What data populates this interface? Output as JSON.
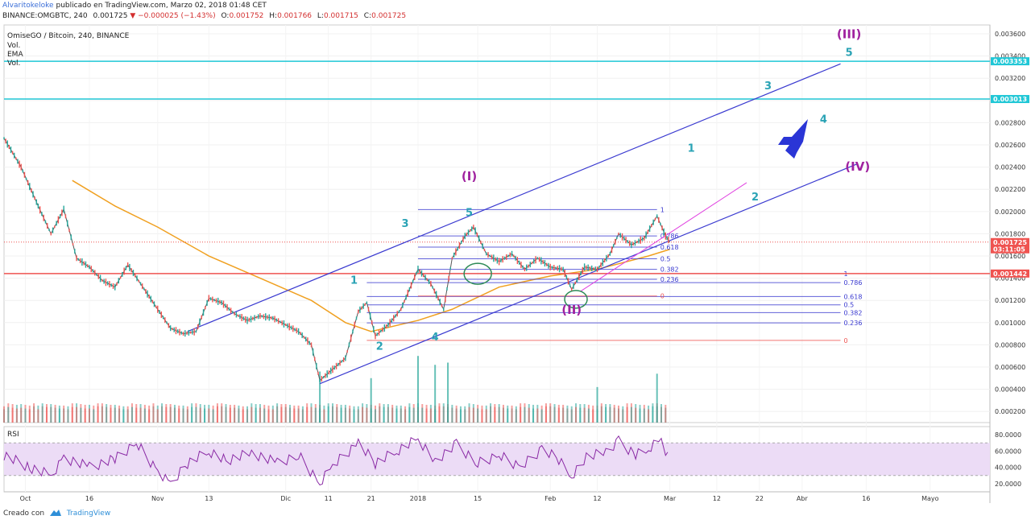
{
  "header": {
    "author": "Alvaritokeloke",
    "published": "publicado en TradingView.com, Marzo 02, 2018 01:48 CET",
    "symbol": "BINANCE:OMGBTC, 240",
    "last": "0.001725",
    "change": "−0.000025 (−1.43%)",
    "o_label": "O:",
    "o_value": "0.001752",
    "h_label": "H:",
    "h_value": "0.001766",
    "l_label": "L:",
    "l_value": "0.001715",
    "c_label": "C:",
    "c_value": "0.001725"
  },
  "legend": {
    "title": "OmiseGO / Bitcoin, 240, BINANCE",
    "vol": "Vol.",
    "ema": "EMA",
    "vol2": "Vol.",
    "rsi": "RSI"
  },
  "footer": {
    "created_with": "Creado con",
    "brand": "TradingView"
  },
  "colors": {
    "up": "#26a69a",
    "down": "#ef5350",
    "ema": "#f0a020",
    "channel": "#3a3ad0",
    "wave_teal": "#2aa3b5",
    "wave_purple": "#a0229f",
    "rsi_line": "#8a2aa5",
    "rsi_band": "#ecdcf6",
    "cyan_line": "#20c7d6"
  },
  "chart_data": {
    "type": "line",
    "series": [
      {
        "values": [
          {
            "x": "2017-09-26",
            "y": 0.00266
          },
          {
            "x": "2017-09-30",
            "y": 0.0024
          },
          {
            "x": "2017-10-04",
            "y": 0.00205
          },
          {
            "x": "2017-10-07",
            "y": 0.0018
          },
          {
            "x": "2017-10-10",
            "y": 0.00202
          },
          {
            "x": "2017-10-13",
            "y": 0.00158
          },
          {
            "x": "2017-10-16",
            "y": 0.0015
          },
          {
            "x": "2017-10-19",
            "y": 0.00138
          },
          {
            "x": "2017-10-22",
            "y": 0.00132
          },
          {
            "x": "2017-10-25",
            "y": 0.00152
          },
          {
            "x": "2017-10-28",
            "y": 0.00135
          },
          {
            "x": "2017-11-01",
            "y": 0.00112
          },
          {
            "x": "2017-11-04",
            "y": 0.00095
          },
          {
            "x": "2017-11-07",
            "y": 0.0009
          },
          {
            "x": "2017-11-10",
            "y": 0.00092
          },
          {
            "x": "2017-11-13",
            "y": 0.00122
          },
          {
            "x": "2017-11-16",
            "y": 0.00118
          },
          {
            "x": "2017-11-19",
            "y": 0.00108
          },
          {
            "x": "2017-11-22",
            "y": 0.00102
          },
          {
            "x": "2017-11-25",
            "y": 0.00106
          },
          {
            "x": "2017-11-28",
            "y": 0.00104
          },
          {
            "x": "2017-12-01",
            "y": 0.00098
          },
          {
            "x": "2017-12-04",
            "y": 0.00092
          },
          {
            "x": "2017-12-07",
            "y": 0.0008
          },
          {
            "x": "2017-12-09",
            "y": 0.00048
          },
          {
            "x": "2017-12-12",
            "y": 0.00058
          },
          {
            "x": "2017-12-15",
            "y": 0.00068
          },
          {
            "x": "2017-12-18",
            "y": 0.0011
          },
          {
            "x": "2017-12-20",
            "y": 0.00118
          },
          {
            "x": "2017-12-22",
            "y": 0.00088
          },
          {
            "x": "2017-12-25",
            "y": 0.00098
          },
          {
            "x": "2017-12-28",
            "y": 0.00112
          },
          {
            "x": "2018-01-01",
            "y": 0.00148
          },
          {
            "x": "2018-01-04",
            "y": 0.00135
          },
          {
            "x": "2018-01-07",
            "y": 0.00112
          },
          {
            "x": "2018-01-09",
            "y": 0.00158
          },
          {
            "x": "2018-01-12",
            "y": 0.00178
          },
          {
            "x": "2018-01-14",
            "y": 0.00186
          },
          {
            "x": "2018-01-17",
            "y": 0.00162
          },
          {
            "x": "2018-01-20",
            "y": 0.00155
          },
          {
            "x": "2018-01-23",
            "y": 0.00162
          },
          {
            "x": "2018-01-26",
            "y": 0.00148
          },
          {
            "x": "2018-01-29",
            "y": 0.00158
          },
          {
            "x": "2018-02-01",
            "y": 0.0015
          },
          {
            "x": "2018-02-04",
            "y": 0.00148
          },
          {
            "x": "2018-02-06",
            "y": 0.0013
          },
          {
            "x": "2018-02-09",
            "y": 0.0015
          },
          {
            "x": "2018-02-12",
            "y": 0.00148
          },
          {
            "x": "2018-02-15",
            "y": 0.00162
          },
          {
            "x": "2018-02-17",
            "y": 0.0018
          },
          {
            "x": "2018-02-20",
            "y": 0.0017
          },
          {
            "x": "2018-02-23",
            "y": 0.00176
          },
          {
            "x": "2018-02-26",
            "y": 0.00196
          },
          {
            "x": "2018-02-28",
            "y": 0.00178
          },
          {
            "x": "2018-03-01",
            "y": 0.001725
          }
        ]
      }
    ],
    "ema": [
      {
        "x": "2017-10-12",
        "y": 0.00228
      },
      {
        "x": "2017-10-22",
        "y": 0.00205
      },
      {
        "x": "2017-11-01",
        "y": 0.00186
      },
      {
        "x": "2017-11-13",
        "y": 0.0016
      },
      {
        "x": "2017-11-25",
        "y": 0.0014
      },
      {
        "x": "2017-12-07",
        "y": 0.0012
      },
      {
        "x": "2017-12-15",
        "y": 0.001
      },
      {
        "x": "2017-12-21",
        "y": 0.00092
      },
      {
        "x": "2018-01-01",
        "y": 0.00102
      },
      {
        "x": "2018-01-09",
        "y": 0.00112
      },
      {
        "x": "2018-01-20",
        "y": 0.00132
      },
      {
        "x": "2018-02-01",
        "y": 0.00142
      },
      {
        "x": "2018-02-12",
        "y": 0.00148
      },
      {
        "x": "2018-02-24",
        "y": 0.0016
      },
      {
        "x": "2018-03-01",
        "y": 0.00166
      }
    ],
    "rsi": [
      {
        "x": "2017-09-26",
        "y": 55
      },
      {
        "x": "2017-10-02",
        "y": 40
      },
      {
        "x": "2017-10-07",
        "y": 30
      },
      {
        "x": "2017-10-10",
        "y": 52
      },
      {
        "x": "2017-10-16",
        "y": 40
      },
      {
        "x": "2017-10-22",
        "y": 50
      },
      {
        "x": "2017-10-27",
        "y": 70
      },
      {
        "x": "2017-11-01",
        "y": 35
      },
      {
        "x": "2017-11-04",
        "y": 18
      },
      {
        "x": "2017-11-08",
        "y": 45
      },
      {
        "x": "2017-11-13",
        "y": 60
      },
      {
        "x": "2017-11-17",
        "y": 48
      },
      {
        "x": "2017-11-23",
        "y": 58
      },
      {
        "x": "2017-11-29",
        "y": 45
      },
      {
        "x": "2017-12-04",
        "y": 55
      },
      {
        "x": "2017-12-09",
        "y": 20
      },
      {
        "x": "2017-12-12",
        "y": 42
      },
      {
        "x": "2017-12-18",
        "y": 70
      },
      {
        "x": "2017-12-22",
        "y": 45
      },
      {
        "x": "2017-12-27",
        "y": 60
      },
      {
        "x": "2018-01-01",
        "y": 75
      },
      {
        "x": "2018-01-05",
        "y": 48
      },
      {
        "x": "2018-01-10",
        "y": 68
      },
      {
        "x": "2018-01-15",
        "y": 45
      },
      {
        "x": "2018-01-20",
        "y": 55
      },
      {
        "x": "2018-01-25",
        "y": 40
      },
      {
        "x": "2018-01-30",
        "y": 62
      },
      {
        "x": "2018-02-03",
        "y": 50
      },
      {
        "x": "2018-02-06",
        "y": 30
      },
      {
        "x": "2018-02-10",
        "y": 55
      },
      {
        "x": "2018-02-14",
        "y": 60
      },
      {
        "x": "2018-02-17",
        "y": 72
      },
      {
        "x": "2018-02-21",
        "y": 55
      },
      {
        "x": "2018-02-24",
        "y": 62
      },
      {
        "x": "2018-02-27",
        "y": 74
      },
      {
        "x": "2018-03-01",
        "y": 45
      }
    ],
    "volume": [
      {
        "x": "2017-12-09",
        "y": 0.00056
      },
      {
        "x": "2017-12-21",
        "y": 0.0005
      },
      {
        "x": "2018-01-01",
        "y": 0.0007
      },
      {
        "x": "2018-01-05",
        "y": 0.00062
      },
      {
        "x": "2018-01-08",
        "y": 0.00064
      },
      {
        "x": "2018-02-12",
        "y": 0.00042
      },
      {
        "x": "2018-02-26",
        "y": 0.00054
      }
    ],
    "x_axis": {
      "ticks": [
        {
          "x": "2017-10-01",
          "label": "Oct"
        },
        {
          "x": "2017-10-16",
          "label": "16"
        },
        {
          "x": "2017-11-01",
          "label": "Nov"
        },
        {
          "x": "2017-11-13",
          "label": "13"
        },
        {
          "x": "2017-12-01",
          "label": "Dic"
        },
        {
          "x": "2017-12-11",
          "label": "11"
        },
        {
          "x": "2017-12-21",
          "label": "21"
        },
        {
          "x": "2018-01-01",
          "label": "2018"
        },
        {
          "x": "2018-01-15",
          "label": "15"
        },
        {
          "x": "2018-02-01",
          "label": "Feb"
        },
        {
          "x": "2018-02-12",
          "label": "12"
        },
        {
          "x": "2018-03-01",
          "label": "Mar"
        },
        {
          "x": "2018-03-12",
          "label": "12"
        },
        {
          "x": "2018-03-22",
          "label": "22"
        },
        {
          "x": "2018-04-01",
          "label": "Abr"
        },
        {
          "x": "2018-04-16",
          "label": "16"
        },
        {
          "x": "2018-05-01",
          "label": "Mayo"
        }
      ],
      "range": [
        "2017-09-26",
        "2018-05-15"
      ]
    },
    "y_axis": {
      "ticks": [
        "0.000200",
        "0.000400",
        "0.000600",
        "0.000800",
        "0.001000",
        "0.001200",
        "0.001400",
        "0.001600",
        "0.001800",
        "0.002000",
        "0.002200",
        "0.002400",
        "0.002600",
        "0.002800",
        "0.003000",
        "0.003200",
        "0.003400",
        "0.003600"
      ],
      "range": [
        0.0001,
        0.00368
      ]
    },
    "rsi_axis": {
      "ticks": [
        "20.0000",
        "40.0000",
        "60.0000",
        "80.0000"
      ],
      "range": [
        10,
        90
      ]
    },
    "price_tags": [
      {
        "value": 0.003353,
        "label": "0.003353",
        "color": "#20c7d6"
      },
      {
        "value": 0.003013,
        "label": "0.003013",
        "color": "#20c7d6"
      },
      {
        "value": 0.001725,
        "label": "0.001725",
        "color": "#ef5350"
      },
      {
        "value": 0.00166,
        "label": "03:11:05",
        "color": "#ef5350"
      },
      {
        "value": 0.001442,
        "label": "0.001442",
        "color": "#ef5350"
      }
    ],
    "horizontal_lines": [
      {
        "value": 0.003353,
        "color": "#20c7d6"
      },
      {
        "value": 0.003013,
        "color": "#20c7d6"
      },
      {
        "value": 0.001442,
        "color": "#ef5350"
      }
    ],
    "channels": [
      {
        "from": {
          "x": "2017-11-08",
          "y": 0.00092
        },
        "to": {
          "x": "2018-04-10",
          "y": 0.00333
        }
      },
      {
        "from": {
          "x": "2017-12-09",
          "y": 0.00045
        },
        "to": {
          "x": "2018-04-14",
          "y": 0.00243
        }
      }
    ],
    "fib_sets": [
      {
        "x_from": "2017-12-20",
        "x_to": "2018-04-10",
        "levels": [
          {
            "y": 0.001442,
            "label": "1",
            "color": "#3a3ad0"
          },
          {
            "y": 0.00136,
            "label": "0.786",
            "color": "#3a3ad0"
          },
          {
            "y": 0.001235,
            "label": "0.618",
            "color": "#3a3ad0"
          },
          {
            "y": 0.00116,
            "label": "0.5",
            "color": "#3a3ad0"
          },
          {
            "y": 0.00109,
            "label": "0.382",
            "color": "#3a3ad0"
          },
          {
            "y": 0.000998,
            "label": "0.236",
            "color": "#3a3ad0"
          },
          {
            "y": 0.00084,
            "label": "0",
            "color": "#ef5350"
          }
        ]
      },
      {
        "x_from": "2018-01-01",
        "x_to": "2018-02-26",
        "levels": [
          {
            "y": 0.002018,
            "label": "1",
            "color": "#3a3ad0"
          },
          {
            "y": 0.00178,
            "label": "0.786",
            "color": "#3a3ad0"
          },
          {
            "y": 0.00168,
            "label": "0.618",
            "color": "#3a3ad0"
          },
          {
            "y": 0.001575,
            "label": "0.5",
            "color": "#3a3ad0"
          },
          {
            "y": 0.00148,
            "label": "0.382",
            "color": "#3a3ad0"
          },
          {
            "y": 0.00139,
            "label": "0.236",
            "color": "#3a3ad0"
          },
          {
            "y": 0.00124,
            "label": "0",
            "color": "#ef5350"
          }
        ]
      }
    ],
    "wave_labels": [
      {
        "x": "2017-12-17",
        "y": 0.00135,
        "text": "1",
        "color": "#2aa3b5"
      },
      {
        "x": "2017-12-23",
        "y": 0.000755,
        "text": "2",
        "color": "#2aa3b5"
      },
      {
        "x": "2017-12-29",
        "y": 0.00186,
        "text": "3",
        "color": "#2aa3b5"
      },
      {
        "x": "2018-01-05",
        "y": 0.00084,
        "text": "4",
        "color": "#2aa3b5"
      },
      {
        "x": "2018-01-13",
        "y": 0.00196,
        "text": "5",
        "color": "#2aa3b5"
      },
      {
        "x": "2018-01-13",
        "y": 0.00228,
        "text": "(I)",
        "color": "#a0229f"
      },
      {
        "x": "2018-02-06",
        "y": 0.00108,
        "text": "(II)",
        "color": "#a0229f"
      },
      {
        "x": "2018-03-06",
        "y": 0.00254,
        "text": "1",
        "color": "#2aa3b5"
      },
      {
        "x": "2018-03-21",
        "y": 0.0021,
        "text": "2",
        "color": "#2aa3b5"
      },
      {
        "x": "2018-03-24",
        "y": 0.0031,
        "text": "3",
        "color": "#2aa3b5"
      },
      {
        "x": "2018-04-06",
        "y": 0.0028,
        "text": "4",
        "color": "#2aa3b5"
      },
      {
        "x": "2018-04-12",
        "y": 0.0034,
        "text": "5",
        "color": "#2aa3b5"
      },
      {
        "x": "2018-04-12",
        "y": 0.00356,
        "text": "(III)",
        "color": "#a0229f"
      },
      {
        "x": "2018-04-14",
        "y": 0.00237,
        "text": "(IV)",
        "color": "#a0229f"
      }
    ]
  }
}
